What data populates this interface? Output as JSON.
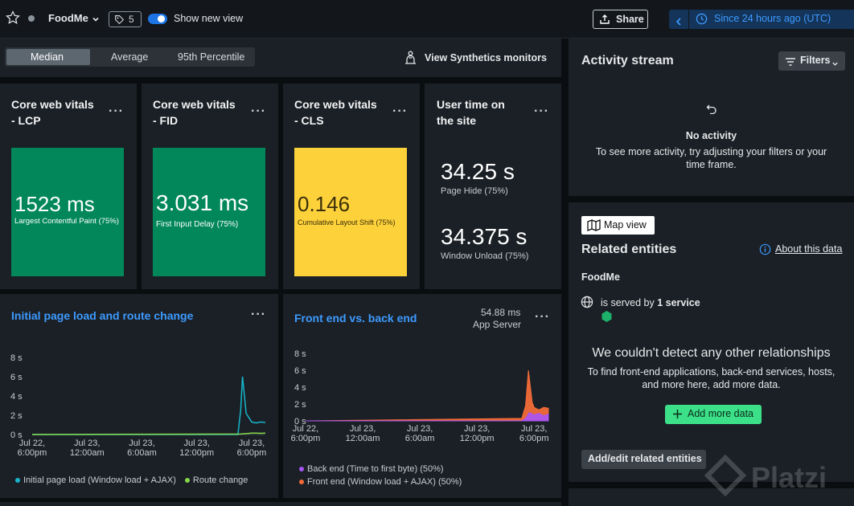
{
  "header": {
    "app_name": "FoodMe",
    "tag_count": "5",
    "toggle_label": "Show new view",
    "share_label": "Share",
    "time_range": "Since 24 hours ago (UTC)"
  },
  "stat_tabs": {
    "items": [
      "Median",
      "Average",
      "95th Percentile"
    ],
    "active": "Median"
  },
  "synthetics_label": "View Synthetics monitors",
  "vitals": [
    {
      "title_l1": "Core web vitals",
      "title_l2": "- LCP",
      "value": "1523 ms",
      "caption": "Largest Contentful Paint (75%)",
      "color": "#01875a"
    },
    {
      "title_l1": "Core web vitals",
      "title_l2": "- FID",
      "value": "3.031 ms",
      "caption": "First Input Delay (75%)",
      "color": "#01875a"
    },
    {
      "title_l1": "Core web vitals",
      "title_l2": "- CLS",
      "value": "0.146",
      "caption": "Cumulative Layout Shift (75%)",
      "color": "#fdd13a"
    }
  ],
  "user_time": {
    "title_l1": "User time on",
    "title_l2": "the site",
    "v1": "34.25 s",
    "c1": "Page Hide (75%)",
    "v2": "34.375 s",
    "c2": "Window Unload (75%)"
  },
  "activity": {
    "title": "Activity stream",
    "filters_label": "Filters",
    "empty_title": "No activity",
    "empty_l1": "To see more activity, try adjusting your filters or your",
    "empty_l2": "time frame."
  },
  "related": {
    "map_label": "Map view",
    "title": "Related entities",
    "about_label": "About this data",
    "entity": "FoodMe",
    "served_prefix": "is served by",
    "served_count": "1 service",
    "none_title": "We couldn't detect any other relationships",
    "none_l1": "To find front-end applications, back-end services, hosts,",
    "none_l2": "and more here, add more data.",
    "add_label": "Add more data",
    "edit_label": "Add/edit related entities"
  },
  "watermark": "Platzi",
  "chart_data": [
    {
      "type": "line",
      "title": "Initial page load and route change",
      "y_ticks": [
        "8 s",
        "6 s",
        "4 s",
        "2 s",
        "0 s"
      ],
      "ylim": [
        0,
        8
      ],
      "x_ticks": [
        [
          "Jul 22,",
          "6:00pm"
        ],
        [
          "Jul 23,",
          "12:00am"
        ],
        [
          "Jul 23,",
          "6:00am"
        ],
        [
          "Jul 23,",
          "12:00pm"
        ],
        [
          "Jul 23,",
          "6:00pm"
        ]
      ],
      "x_range_hours": [
        -24,
        1.5
      ],
      "series": [
        {
          "name": "Initial page load (Window load + AJAX)",
          "color": "#17b6cc",
          "x": [
            -24,
            -2.5,
            -1.5,
            -1.2,
            -1.0,
            -0.6,
            0,
            0.5,
            1.0,
            1.5
          ],
          "y": [
            0,
            0,
            0,
            2.5,
            6.0,
            2.2,
            1.3,
            1.2,
            1.3,
            1.25
          ]
        },
        {
          "name": "Route change",
          "color": "#86d84a",
          "x": [
            -24,
            -1.2,
            -0.5,
            0,
            0.5,
            1.0,
            1.5
          ],
          "y": [
            0,
            0.05,
            0.1,
            0.15,
            0.15,
            0.12,
            0.15
          ]
        }
      ]
    },
    {
      "type": "area",
      "title": "Front end vs. back end",
      "summary_value": "54.88 ms",
      "summary_label": "App Server",
      "y_ticks": [
        "8 s",
        "6 s",
        "4 s",
        "2 s",
        "0 s"
      ],
      "ylim": [
        0,
        8
      ],
      "x_ticks": [
        [
          "Jul 22,",
          "6:00pm"
        ],
        [
          "Jul 23,",
          "12:00am"
        ],
        [
          "Jul 23,",
          "6:00am"
        ],
        [
          "Jul 23,",
          "12:00pm"
        ],
        [
          "Jul 23,",
          "6:00pm"
        ]
      ],
      "x_range_hours": [
        -24,
        1.5
      ],
      "series": [
        {
          "name": "Back end (Time to first byte) (50%)",
          "color": "#a855f7",
          "x": [
            -24,
            -1.3,
            -0.9,
            -0.5,
            0,
            0.5,
            1.0,
            1.5
          ],
          "y": [
            0,
            0,
            0.3,
            1.0,
            0.7,
            0.9,
            0.6,
            0.8
          ]
        },
        {
          "name": "Front end (Window load + AJAX) (50%)",
          "color": "#f26b38",
          "x": [
            -24,
            -1.3,
            -0.9,
            -0.6,
            -0.2,
            0,
            0.5,
            1.0,
            1.5
          ],
          "y": [
            0,
            0.3,
            1.8,
            6.0,
            2.2,
            1.6,
            1.3,
            1.6,
            1.5
          ]
        }
      ]
    }
  ]
}
